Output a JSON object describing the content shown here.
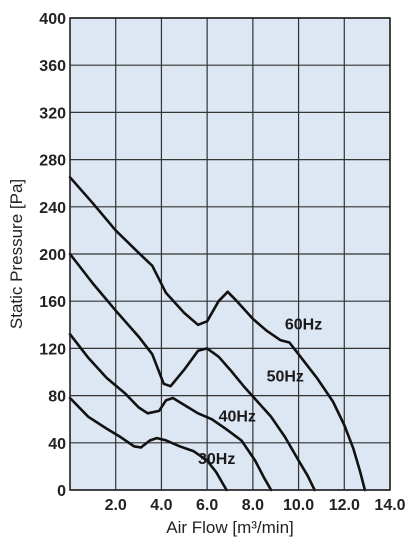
{
  "chart_data": {
    "type": "line",
    "title": "",
    "xlabel": "Air Flow [m³/min]",
    "ylabel": "Static Pressure [Pa]",
    "xlim": [
      0,
      14.0
    ],
    "ylim": [
      0,
      400
    ],
    "grid": true,
    "plot_background": "#dde6f3",
    "grid_color": "#333333",
    "line_color": "#111111",
    "x_ticks": [
      {
        "value": 2,
        "label": "2.0"
      },
      {
        "value": 4,
        "label": "4.0"
      },
      {
        "value": 6,
        "label": "6.0"
      },
      {
        "value": 8,
        "label": "8.0"
      },
      {
        "value": 10,
        "label": "10.0"
      },
      {
        "value": 12,
        "label": "12.0"
      },
      {
        "value": 14,
        "label": "14.0"
      }
    ],
    "y_ticks": [
      {
        "value": 0,
        "label": "0"
      },
      {
        "value": 40,
        "label": "40"
      },
      {
        "value": 80,
        "label": "80"
      },
      {
        "value": 120,
        "label": "120"
      },
      {
        "value": 160,
        "label": "160"
      },
      {
        "value": 200,
        "label": "200"
      },
      {
        "value": 240,
        "label": "240"
      },
      {
        "value": 280,
        "label": "280"
      },
      {
        "value": 320,
        "label": "320"
      },
      {
        "value": 360,
        "label": "360"
      },
      {
        "value": 400,
        "label": "400"
      }
    ],
    "series": [
      {
        "name": "60Hz",
        "label_at": {
          "x": 9.4,
          "y": 136
        },
        "points": [
          [
            0,
            265
          ],
          [
            1,
            243
          ],
          [
            2,
            220
          ],
          [
            3,
            201
          ],
          [
            3.6,
            190
          ],
          [
            4.2,
            167
          ],
          [
            5,
            150
          ],
          [
            5.6,
            140
          ],
          [
            6,
            143
          ],
          [
            6.5,
            160
          ],
          [
            6.9,
            168
          ],
          [
            7.3,
            160
          ],
          [
            8,
            145
          ],
          [
            8.6,
            135
          ],
          [
            9.2,
            127
          ],
          [
            9.6,
            125
          ],
          [
            10,
            115
          ],
          [
            10.8,
            95
          ],
          [
            11.5,
            75
          ],
          [
            12,
            55
          ],
          [
            12.4,
            35
          ],
          [
            12.7,
            15
          ],
          [
            12.9,
            0
          ]
        ]
      },
      {
        "name": "50Hz",
        "label_at": {
          "x": 8.6,
          "y": 92
        },
        "points": [
          [
            0,
            200
          ],
          [
            1,
            175
          ],
          [
            2,
            152
          ],
          [
            3,
            130
          ],
          [
            3.6,
            115
          ],
          [
            4.1,
            90
          ],
          [
            4.4,
            88
          ],
          [
            5,
            102
          ],
          [
            5.6,
            118
          ],
          [
            6,
            120
          ],
          [
            6.5,
            113
          ],
          [
            7,
            102
          ],
          [
            7.6,
            88
          ],
          [
            8.2,
            75
          ],
          [
            8.8,
            62
          ],
          [
            9.4,
            45
          ],
          [
            10,
            25
          ],
          [
            10.4,
            12
          ],
          [
            10.7,
            0
          ]
        ]
      },
      {
        "name": "40Hz",
        "label_at": {
          "x": 6.5,
          "y": 58
        },
        "points": [
          [
            0,
            132
          ],
          [
            0.8,
            112
          ],
          [
            1.6,
            95
          ],
          [
            2.4,
            82
          ],
          [
            3,
            70
          ],
          [
            3.4,
            65
          ],
          [
            3.9,
            67
          ],
          [
            4.2,
            76
          ],
          [
            4.5,
            78
          ],
          [
            5,
            72
          ],
          [
            5.6,
            65
          ],
          [
            6.2,
            60
          ],
          [
            6.8,
            52
          ],
          [
            7.5,
            42
          ],
          [
            8.1,
            25
          ],
          [
            8.5,
            10
          ],
          [
            8.8,
            0
          ]
        ]
      },
      {
        "name": "30Hz",
        "label_at": {
          "x": 5.6,
          "y": 22
        },
        "points": [
          [
            0,
            78
          ],
          [
            0.8,
            62
          ],
          [
            1.6,
            52
          ],
          [
            2.2,
            45
          ],
          [
            2.8,
            37
          ],
          [
            3.1,
            36
          ],
          [
            3.5,
            42
          ],
          [
            3.8,
            44
          ],
          [
            4.2,
            42
          ],
          [
            4.8,
            37
          ],
          [
            5.4,
            33
          ],
          [
            6,
            25
          ],
          [
            6.4,
            15
          ],
          [
            6.7,
            5
          ],
          [
            6.85,
            0
          ]
        ]
      }
    ]
  }
}
